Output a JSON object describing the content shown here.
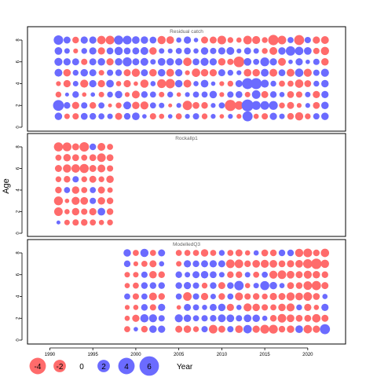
{
  "chart_data": {
    "type": "scatter",
    "ylabel": "Age",
    "xlabel": "Year",
    "colors": {
      "positive": "#6b6bff",
      "negative": "#ff6b6b",
      "frame": "#000000",
      "title": "#666666"
    },
    "x_ticks": [
      1990,
      1995,
      2000,
      2005,
      2010,
      2015,
      2020
    ],
    "y_ticks": [
      0,
      2,
      4,
      6,
      8
    ],
    "panels": [
      {
        "title": "Residual catch",
        "years": [
          1991,
          1992,
          1993,
          1994,
          1995,
          1996,
          1997,
          1998,
          1999,
          2000,
          2001,
          2002,
          2003,
          2004,
          2005,
          2006,
          2007,
          2008,
          2009,
          2010,
          2011,
          2012,
          2013,
          2014,
          2015,
          2016,
          2017,
          2018,
          2019,
          2020,
          2021,
          2022
        ],
        "ages": [
          1,
          2,
          3,
          4,
          5,
          6,
          7,
          8
        ],
        "residuals": [
          [
            1.4,
            -0.6,
            -0.9,
            1.1,
            1.0,
            0.8,
            0.6,
            -1.2,
            1.0,
            1.5,
            0.3,
            -0.9,
            -0.5,
            0.3,
            -0.8,
            0.4,
            0.9,
            -0.7,
            0.4,
            -0.3,
            0.4,
            -0.4,
            3.0,
            -0.5,
            -0.9,
            1.3,
            0.6,
            -1.0,
            -1.8,
            -0.7,
            0.9,
            1.4
          ],
          [
            3.6,
            1.0,
            -1.3,
            0.9,
            -1.0,
            0.8,
            -0.2,
            -0.7,
            1.6,
            -1.4,
            -1.7,
            0.8,
            0.6,
            -0.2,
            0.4,
            -2.5,
            -1.1,
            -1.0,
            0.4,
            0.8,
            -3.9,
            -2.0,
            4.5,
            2.2,
            2.1,
            2.2,
            -0.7,
            -1.2,
            -0.4,
            0.4,
            -1.1,
            1.4
          ],
          [
            -0.7,
            0.2,
            1.0,
            -0.3,
            0.3,
            -0.6,
            0.7,
            1.4,
            -0.4,
            -1.6,
            1.0,
            0.8,
            -0.6,
            0.7,
            -0.3,
            0.4,
            0.8,
            0.8,
            1.4,
            -0.4,
            0.9,
            1.1,
            -0.6,
            2.0,
            -1.2,
            1.0,
            0.5,
            -1.1,
            -0.9,
            0.6,
            -1.3,
            1.3
          ],
          [
            -0.4,
            -1.3,
            0.6,
            -1.7,
            1.3,
            -1.3,
            1.5,
            -0.5,
            -1.3,
            -0.3,
            -1.8,
            0.5,
            -2.2,
            -2.5,
            1.4,
            -1.6,
            0.5,
            1.5,
            0.3,
            -0.4,
            -0.7,
            1.2,
            3.7,
            3.8,
            1.7,
            0.7,
            -0.8,
            -0.8,
            -1.9,
            -1.1,
            0.7,
            1.4
          ],
          [
            1.6,
            -1.4,
            0.7,
            1.4,
            1.2,
            -0.6,
            0.9,
            1.0,
            -1.2,
            -1.8,
            1.2,
            -1.4,
            1.4,
            -1.6,
            1.3,
            -0.4,
            -1.9,
            -1.4,
            -1.3,
            1.2,
            0.7,
            0.4,
            -1.5,
            -1.4,
            1.6,
            -1.6,
            1.1,
            -1.6,
            1.9,
            -1.7,
            0.9,
            1.7
          ],
          [
            1.7,
            1.3,
            1.2,
            -0.9,
            1.2,
            1.4,
            -1.3,
            1.4,
            2.3,
            1.2,
            1.6,
            0.6,
            1.5,
            1.4,
            1.3,
            -1.9,
            1.1,
            1.7,
            1.3,
            -1.4,
            -0.9,
            -3.5,
            1.5,
            0.8,
            2.2,
            1.3,
            -1.6,
            0.3,
            1.3,
            0.3,
            0.9,
            -1.4
          ],
          [
            1.5,
            0.6,
            -0.4,
            0.7,
            1.3,
            -1.3,
            1.1,
            1.8,
            1.1,
            1.2,
            1.6,
            -1.4,
            0.6,
            0.4,
            0.8,
            1.1,
            0.5,
            1.4,
            0.9,
            1.3,
            1.6,
            0.4,
            1.2,
            0.6,
            -0.7,
            -1.6,
            1.4,
            2.6,
            1.9,
            1.5,
            -0.9,
            -1.8
          ],
          [
            2.6,
            1.2,
            -1.0,
            1.3,
            1.3,
            -1.9,
            -2.1,
            2.3,
            2.1,
            1.5,
            1.4,
            1.1,
            -1.8,
            -1.5,
            0.5,
            1.3,
            0.3,
            -1.2,
            -1.2,
            -2.1,
            -0.7,
            -0.5,
            -2.0,
            -1.7,
            -0.7,
            -3.2,
            -2.0,
            0.8,
            -3.0,
            0.9,
            -1.3,
            -1.6
          ]
        ]
      },
      {
        "title": "Rockallp1",
        "years": [
          1991,
          1992,
          1993,
          1994,
          1995,
          1996,
          1997
        ],
        "ages": [
          1,
          2,
          3,
          4,
          5,
          6,
          7,
          8
        ],
        "residuals": [
          [
            0.2,
            -0.6,
            -0.9,
            -1.0,
            -0.8,
            -0.5,
            -0.7
          ],
          [
            -2.0,
            -0.5,
            -1.4,
            -0.9,
            -1.3,
            1.5,
            -1.0
          ],
          [
            -2.2,
            -0.3,
            -1.7,
            -1.5,
            0.9,
            -1.4,
            -1.0
          ],
          [
            -1.0,
            0.8,
            -1.4,
            -0.8,
            0.8,
            -1.2,
            -0.6
          ],
          [
            -0.7,
            -1.0,
            0.9,
            -0.7,
            -1.2,
            -0.7,
            -1.4
          ],
          [
            -1.2,
            -1.8,
            -1.9,
            -2.3,
            -1.2,
            -1.6,
            -0.9
          ],
          [
            -0.8,
            -1.4,
            -1.1,
            -0.8,
            -1.1,
            -2.0,
            -1.1
          ],
          [
            -2.3,
            -2.2,
            -1.2,
            -2.6,
            1.0,
            -1.6,
            -0.8
          ]
        ]
      },
      {
        "title": "ModelledQ3",
        "years": [
          1999,
          2000,
          2001,
          2002,
          2003,
          2004,
          2005,
          2006,
          2007,
          2008,
          2009,
          2010,
          2011,
          2012,
          2013,
          2014,
          2015,
          2016,
          2017,
          2018,
          2019,
          2020,
          2021,
          2022
        ],
        "ages": [
          1,
          2,
          3,
          4,
          5,
          6,
          7,
          8
        ],
        "residuals": [
          [
            -0.8,
            0.3,
            -1.0,
            1.4,
            1.3,
            null,
            -1.2,
            -1.4,
            -0.7,
            0.9,
            -2.0,
            -1.2,
            0.9,
            -1.5,
            1.9,
            -1.3,
            -2.2,
            -2.2,
            -1.0,
            -1.4,
            1.5,
            -1.9,
            -1.3,
            3.0
          ],
          [
            -0.5,
            -1.3,
            1.8,
            1.7,
            0.9,
            null,
            1.7,
            1.4,
            0.8,
            0.9,
            1.0,
            1.6,
            1.5,
            0.9,
            1.5,
            1.4,
            0.5,
            -1.0,
            -2.0,
            -1.5,
            -1.1,
            -1.1,
            -1.9,
            -1.2
          ],
          [
            -0.4,
            -0.5,
            1.0,
            -0.9,
            1.3,
            null,
            -0.3,
            1.2,
            0.8,
            0.5,
            1.2,
            1.4,
            -1.3,
            0.5,
            -1.7,
            -1.4,
            -0.9,
            -0.8,
            -1.4,
            -1.7,
            0.7,
            -1.3,
            -0.5,
            1.3
          ],
          [
            0.8,
            -0.9,
            0.8,
            -1.6,
            -1.0,
            null,
            0.8,
            -2.0,
            0.9,
            -1.3,
            0.6,
            -1.0,
            0.8,
            -1.7,
            -0.9,
            -1.0,
            -0.7,
            -1.3,
            -1.2,
            -1.8,
            -1.5,
            -2.0,
            -1.1,
            0.5
          ],
          [
            -0.5,
            -0.8,
            1.0,
            1.0,
            1.0,
            null,
            1.0,
            1.3,
            0.9,
            -0.7,
            1.0,
            -1.2,
            1.0,
            2.5,
            -0.5,
            0.6,
            2.3,
            1.4,
            0.5,
            -1.1,
            -1.0,
            -2.0,
            -2.4,
            -1.2
          ],
          [
            -0.6,
            -0.6,
            0.9,
            -1.4,
            -1.0,
            null,
            1.0,
            0.6,
            1.2,
            1.4,
            1.1,
            0.6,
            -1.0,
            -1.0,
            0.6,
            -0.8,
            0.8,
            -1.7,
            -2.0,
            -1.5,
            -1.2,
            -1.7,
            -1.4,
            -1.0
          ],
          [
            1.0,
            -0.4,
            -0.8,
            -1.2,
            0.5,
            null,
            -0.6,
            1.3,
            1.0,
            1.2,
            1.3,
            1.2,
            -2.0,
            -2.0,
            -1.0,
            -1.5,
            -1.7,
            -1.5,
            -1.1,
            -1.3,
            -1.5,
            -2.4,
            -3.3,
            -1.8
          ],
          [
            1.4,
            -0.8,
            1.8,
            -0.8,
            1.2,
            null,
            -0.8,
            -0.8,
            -0.8,
            -1.4,
            -0.8,
            0.7,
            -0.8,
            -1.2,
            -0.5,
            0.5,
            -1.1,
            -1.0,
            1.0,
            1.0,
            -1.8,
            -2.1,
            -1.0,
            -1.9
          ]
        ]
      }
    ],
    "legend": {
      "entries": [
        "-4",
        "-2",
        "0",
        "2",
        "4",
        "6"
      ],
      "values": [
        -4,
        -2,
        0,
        2,
        4,
        6
      ],
      "label": "Year"
    }
  }
}
